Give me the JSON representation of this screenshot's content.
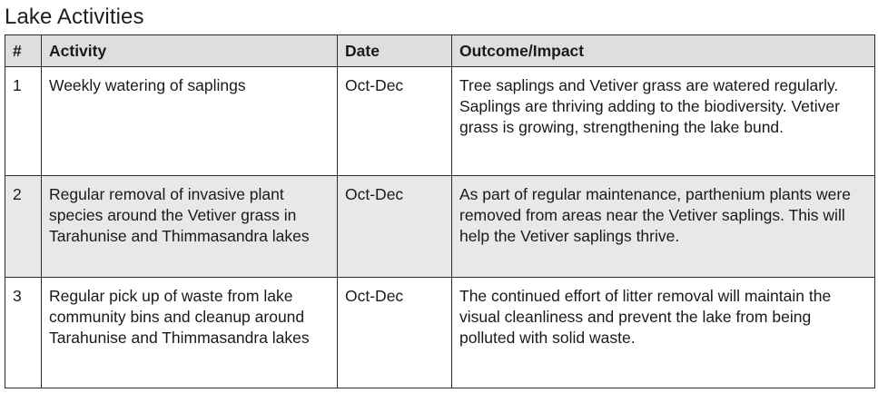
{
  "title": "Lake Activities",
  "table": {
    "headers": {
      "num": "#",
      "activity": "Activity",
      "date": "Date",
      "outcome": "Outcome/Impact"
    },
    "rows": [
      {
        "num": "1",
        "activity": "Weekly watering of saplings",
        "date": "Oct-Dec",
        "outcome": "Tree saplings and Vetiver grass are watered regularly. Saplings are thriving adding to the biodiversity. Vetiver grass is growing, strengthening the lake bund."
      },
      {
        "num": "2",
        "activity": "Regular removal of invasive plant species around the Vetiver grass in Tarahunise and Thimmasandra lakes",
        "date": "Oct-Dec",
        "outcome": "As part of regular maintenance, parthenium plants were removed from areas near the Vetiver saplings. This will help the Vetiver saplings thrive."
      },
      {
        "num": "3",
        "activity": "Regular pick up of waste from lake community bins and cleanup around Tarahunise and Thimmasandra lakes",
        "date": "Oct-Dec",
        "outcome": "The continued effort of litter removal will maintain the visual cleanliness and prevent the lake from being polluted with solid waste."
      }
    ]
  }
}
